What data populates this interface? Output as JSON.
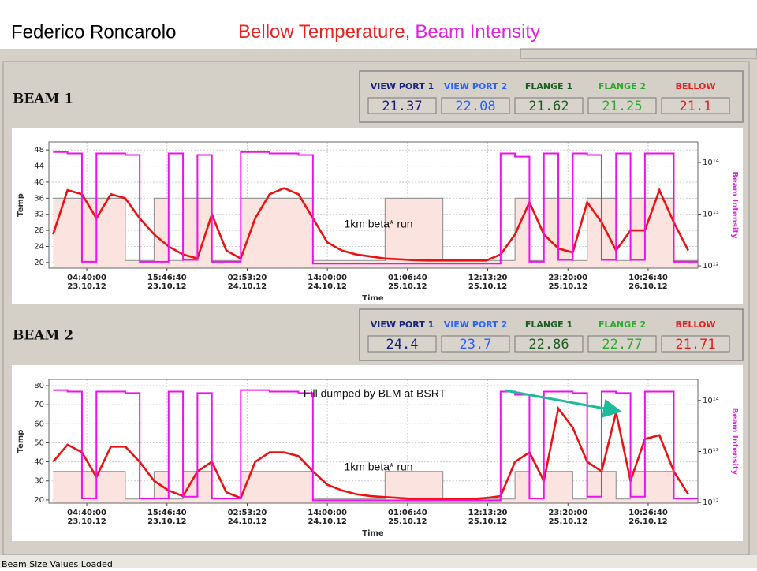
{
  "header": {
    "author": "Federico Roncarolo",
    "title_part1": "Bellow Temperature,",
    "title_part2": "Beam Intensity"
  },
  "beams": [
    {
      "title": "BEAM 1",
      "readouts": [
        {
          "label": "VIEW PORT 1",
          "value": "21.37"
        },
        {
          "label": "VIEW PORT 2",
          "value": "22.08"
        },
        {
          "label": "FLANGE 1",
          "value": "21.62"
        },
        {
          "label": "FLANGE 2",
          "value": "21.25"
        },
        {
          "label": "BELLOW",
          "value": "21.1"
        }
      ]
    },
    {
      "title": "BEAM 2",
      "readouts": [
        {
          "label": "VIEW PORT 1",
          "value": "24.4"
        },
        {
          "label": "VIEW PORT 2",
          "value": "23.7"
        },
        {
          "label": "FLANGE 1",
          "value": "22.86"
        },
        {
          "label": "FLANGE 2",
          "value": "22.77"
        },
        {
          "label": "BELLOW",
          "value": "21.71"
        }
      ]
    }
  ],
  "status": "Beam Size Values Loaded",
  "chart_data": [
    {
      "type": "line",
      "ylabel": "Temp",
      "y2label": "Beam Intensity",
      "xlabel": "Time",
      "grid": true,
      "y2log": true,
      "annotations": [
        "1km beta* run"
      ],
      "x": [
        "2012-10-23T00:00",
        "2012-10-23T02:00",
        "2012-10-23T04:00",
        "2012-10-23T06:00",
        "2012-10-23T08:00",
        "2012-10-23T10:00",
        "2012-10-23T12:00",
        "2012-10-23T14:00",
        "2012-10-23T16:00",
        "2012-10-23T18:00",
        "2012-10-23T20:00",
        "2012-10-23T22:00",
        "2012-10-24T00:00",
        "2012-10-24T02:00",
        "2012-10-24T04:00",
        "2012-10-24T06:00",
        "2012-10-24T08:00",
        "2012-10-24T10:00",
        "2012-10-24T12:00",
        "2012-10-24T14:00",
        "2012-10-24T16:00",
        "2012-10-24T18:00",
        "2012-10-24T20:00",
        "2012-10-24T22:00",
        "2012-10-25T00:00",
        "2012-10-25T02:00",
        "2012-10-25T04:00",
        "2012-10-25T06:00",
        "2012-10-25T08:00",
        "2012-10-25T10:00",
        "2012-10-25T12:00",
        "2012-10-25T14:00",
        "2012-10-25T16:00",
        "2012-10-25T18:00",
        "2012-10-25T20:00",
        "2012-10-25T22:00",
        "2012-10-26T00:00",
        "2012-10-26T02:00",
        "2012-10-26T04:00",
        "2012-10-26T06:00",
        "2012-10-26T08:00",
        "2012-10-26T10:00",
        "2012-10-26T12:00",
        "2012-10-26T14:00",
        "2012-10-26T16:00"
      ],
      "xlim": [
        "2012-10-22T23:25:00",
        "2012-10-26T17:20:00"
      ],
      "xticks": [
        {
          "value": "2012-10-23T04:40:00",
          "label": [
            "04:40:00",
            "23.10.12"
          ]
        },
        {
          "value": "2012-10-23T15:46:40",
          "label": [
            "15:46:40",
            "23.10.12"
          ]
        },
        {
          "value": "2012-10-24T02:53:20",
          "label": [
            "02:53:20",
            "24.10.12"
          ]
        },
        {
          "value": "2012-10-24T14:00:00",
          "label": [
            "14:00:00",
            "24.10.12"
          ]
        },
        {
          "value": "2012-10-25T01:06:40",
          "label": [
            "01:06:40",
            "25.10.12"
          ]
        },
        {
          "value": "2012-10-25T12:13:20",
          "label": [
            "12:13:20",
            "25.10.12"
          ]
        },
        {
          "value": "2012-10-25T23:20:00",
          "label": [
            "23:20:00",
            "25.10.12"
          ]
        },
        {
          "value": "2012-10-26T10:26:40",
          "label": [
            "10:26:40",
            "26.10.12"
          ]
        }
      ],
      "ylim": [
        18.6,
        50
      ],
      "yticks": [
        20,
        24,
        28,
        32,
        36,
        40,
        44,
        48
      ],
      "y2lim": [
        900000000000,
        250000000000000
      ],
      "y2ticks": [
        {
          "value": 1000000000000,
          "label": "10¹²"
        },
        {
          "value": 10000000000000,
          "label": "10¹³"
        },
        {
          "value": 100000000000000,
          "label": "10¹⁴"
        }
      ],
      "series": [
        {
          "color": "#999999",
          "fill": "#fbe4df",
          "step": true,
          "values": [
            36,
            36,
            36,
            36,
            36,
            20.5,
            20.5,
            36,
            20.5,
            36,
            36,
            20.5,
            20.5,
            36,
            36,
            36,
            36,
            36,
            20.5,
            20.5,
            20.5,
            20.5,
            20.5,
            36,
            36,
            36,
            36,
            20.5,
            20.5,
            20.5,
            20.5,
            20.5,
            36,
            20.5,
            36,
            36,
            20.5,
            36,
            36,
            20.5,
            36,
            36,
            36,
            20.5,
            20.5
          ]
        },
        {
          "color": "#ee1111",
          "values": [
            27,
            38,
            37,
            31,
            37,
            36,
            31,
            27,
            24,
            22,
            21,
            32,
            23,
            21,
            31,
            37,
            38.5,
            37,
            31,
            25,
            23,
            22,
            21.5,
            21,
            20.8,
            20.6,
            20.5,
            20.5,
            20.5,
            20.5,
            20.5,
            22,
            27,
            35,
            27,
            23.5,
            22.5,
            35,
            30,
            23,
            28,
            28,
            38,
            30,
            23
          ]
        },
        {
          "color": "#ee11ee",
          "axis": "y2",
          "step": true,
          "values": [
            160000000000000,
            150000000000000,
            1200000000000,
            150000000000000,
            150000000000000,
            140000000000000,
            1200000000000,
            1200000000000,
            150000000000000,
            1300000000000,
            140000000000000,
            1200000000000,
            1200000000000,
            160000000000000,
            160000000000000,
            150000000000000,
            150000000000000,
            140000000000000,
            1100000000000,
            1100000000000,
            1100000000000,
            1100000000000,
            1100000000000,
            1100000000000,
            1100000000000,
            1100000000000,
            1100000000000,
            1100000000000,
            1100000000000,
            1100000000000,
            1100000000000,
            150000000000000,
            130000000000000,
            1200000000000,
            150000000000000,
            1300000000000,
            150000000000000,
            140000000000000,
            1300000000000,
            150000000000000,
            1300000000000,
            150000000000000,
            150000000000000,
            1200000000000,
            1200000000000
          ]
        }
      ]
    },
    {
      "type": "line",
      "ylabel": "Temp",
      "y2label": "Beam Intensity",
      "xlabel": "Time",
      "grid": true,
      "y2log": true,
      "annotations": [
        "Fill dumped by BLM at BSRT",
        "1km beta* run"
      ],
      "x": [
        "2012-10-23T00:00",
        "2012-10-23T02:00",
        "2012-10-23T04:00",
        "2012-10-23T06:00",
        "2012-10-23T08:00",
        "2012-10-23T10:00",
        "2012-10-23T12:00",
        "2012-10-23T14:00",
        "2012-10-23T16:00",
        "2012-10-23T18:00",
        "2012-10-23T20:00",
        "2012-10-23T22:00",
        "2012-10-24T00:00",
        "2012-10-24T02:00",
        "2012-10-24T04:00",
        "2012-10-24T06:00",
        "2012-10-24T08:00",
        "2012-10-24T10:00",
        "2012-10-24T12:00",
        "2012-10-24T14:00",
        "2012-10-24T16:00",
        "2012-10-24T18:00",
        "2012-10-24T20:00",
        "2012-10-24T22:00",
        "2012-10-25T00:00",
        "2012-10-25T02:00",
        "2012-10-25T04:00",
        "2012-10-25T06:00",
        "2012-10-25T08:00",
        "2012-10-25T10:00",
        "2012-10-25T12:00",
        "2012-10-25T14:00",
        "2012-10-25T16:00",
        "2012-10-25T18:00",
        "2012-10-25T20:00",
        "2012-10-25T22:00",
        "2012-10-26T00:00",
        "2012-10-26T02:00",
        "2012-10-26T04:00",
        "2012-10-26T06:00",
        "2012-10-26T08:00",
        "2012-10-26T10:00",
        "2012-10-26T12:00",
        "2012-10-26T14:00",
        "2012-10-26T16:00"
      ],
      "xlim": [
        "2012-10-22T23:25:00",
        "2012-10-26T17:20:00"
      ],
      "xticks": [
        {
          "value": "2012-10-23T04:40:00",
          "label": [
            "04:40:00",
            "23.10.12"
          ]
        },
        {
          "value": "2012-10-23T15:46:40",
          "label": [
            "15:46:40",
            "23.10.12"
          ]
        },
        {
          "value": "2012-10-24T02:53:20",
          "label": [
            "02:53:20",
            "24.10.12"
          ]
        },
        {
          "value": "2012-10-24T14:00:00",
          "label": [
            "14:00:00",
            "24.10.12"
          ]
        },
        {
          "value": "2012-10-25T01:06:40",
          "label": [
            "01:06:40",
            "25.10.12"
          ]
        },
        {
          "value": "2012-10-25T12:13:20",
          "label": [
            "12:13:20",
            "25.10.12"
          ]
        },
        {
          "value": "2012-10-25T23:20:00",
          "label": [
            "23:20:00",
            "25.10.12"
          ]
        },
        {
          "value": "2012-10-26T10:26:40",
          "label": [
            "10:26:40",
            "26.10.12"
          ]
        }
      ],
      "ylim": [
        18.3,
        83.3
      ],
      "yticks": [
        20,
        30,
        40,
        50,
        60,
        70,
        80
      ],
      "y2lim": [
        970000000000,
        260000000000000
      ],
      "y2ticks": [
        {
          "value": 1000000000000,
          "label": "10¹²"
        },
        {
          "value": 10000000000000,
          "label": "10¹³"
        },
        {
          "value": 100000000000000,
          "label": "10¹⁴"
        }
      ],
      "series": [
        {
          "color": "#999999",
          "fill": "#fbe4df",
          "step": true,
          "values": [
            35,
            35,
            35,
            35,
            35,
            20.5,
            20.5,
            35,
            20.5,
            35,
            35,
            20.5,
            20.5,
            35,
            35,
            35,
            35,
            35,
            20.5,
            20.5,
            20.5,
            20.5,
            20.5,
            35,
            35,
            35,
            35,
            20.5,
            20.5,
            20.5,
            20.5,
            20.5,
            35,
            20.5,
            35,
            35,
            20.5,
            35,
            35,
            20.5,
            35,
            35,
            35,
            20.5,
            20.5
          ]
        },
        {
          "color": "#ee1111",
          "values": [
            40,
            49,
            45,
            32,
            48,
            48,
            40,
            30,
            25,
            22,
            35,
            40,
            24,
            21,
            40,
            45,
            45,
            43,
            35,
            28,
            25,
            23,
            22,
            21.5,
            21,
            20.5,
            20.5,
            20.5,
            20.5,
            20.5,
            21,
            22,
            40,
            45,
            30,
            68,
            58,
            40,
            35,
            66,
            30,
            52,
            54,
            35,
            23
          ]
        },
        {
          "color": "#ee11ee",
          "axis": "y2",
          "step": true,
          "values": [
            160000000000000,
            150000000000000,
            1200000000000,
            150000000000000,
            150000000000000,
            140000000000000,
            1200000000000,
            1200000000000,
            150000000000000,
            1300000000000,
            140000000000000,
            1200000000000,
            1200000000000,
            160000000000000,
            160000000000000,
            150000000000000,
            150000000000000,
            140000000000000,
            1100000000000,
            1100000000000,
            1100000000000,
            1100000000000,
            1100000000000,
            1100000000000,
            1100000000000,
            1100000000000,
            1100000000000,
            1100000000000,
            1100000000000,
            1100000000000,
            1100000000000,
            150000000000000,
            130000000000000,
            1200000000000,
            150000000000000,
            150000000000000,
            140000000000000,
            1300000000000,
            150000000000000,
            140000000000000,
            1300000000000,
            150000000000000,
            150000000000000,
            1200000000000,
            1200000000000
          ]
        }
      ]
    }
  ]
}
